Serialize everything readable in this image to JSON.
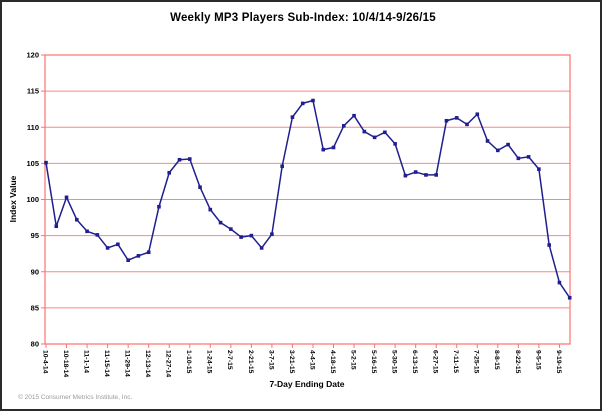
{
  "window": {
    "title": "Weekly MP3 Players Sub-Index: 10/4/14-9/26/15"
  },
  "footer": {
    "copyright": "© 2015 Consumer Metrics Institute, Inc."
  },
  "chart_data": {
    "type": "line",
    "title": "Weekly MP3 Players Sub-Index: 10/4/14-9/26/15",
    "xlabel": "7-Day Ending Date",
    "ylabel": "Index Value",
    "ylim": [
      80,
      120
    ],
    "ytick_step": 5,
    "y_tick_labels": [
      "80",
      "85",
      "90",
      "95",
      "100",
      "105",
      "110",
      "115",
      "120"
    ],
    "grid": true,
    "legend": "none",
    "n_points": 52,
    "x_label_every": 2,
    "x_tick_labels": [
      "10-4-14",
      "10-18-14",
      "11-1-14",
      "11-15-14",
      "11-29-14",
      "12-13-14",
      "12-27-14",
      "1-10-15",
      "1-24-15",
      "2-7-15",
      "2-21-15",
      "3-7-15",
      "3-21-15",
      "4-4-15",
      "4-18-15",
      "5-2-15",
      "5-16-15",
      "5-30-15",
      "6-13-15",
      "6-27-15",
      "7-11-15",
      "7-25-15",
      "8-8-15",
      "8-22-15",
      "9-5-15",
      "9-19-15"
    ],
    "values": [
      105.1,
      96.3,
      100.3,
      97.2,
      95.6,
      95.1,
      93.3,
      93.8,
      91.6,
      92.2,
      92.7,
      99.0,
      103.7,
      105.5,
      105.6,
      101.7,
      98.6,
      96.8,
      95.9,
      94.8,
      95.0,
      93.3,
      95.2,
      104.6,
      111.4,
      113.3,
      113.7,
      106.9,
      107.2,
      110.2,
      111.6,
      109.4,
      108.6,
      109.3,
      107.7,
      103.3,
      103.8,
      103.4,
      103.4,
      110.9,
      111.3,
      110.4,
      111.8,
      108.1,
      106.8,
      107.6,
      105.7,
      105.9,
      104.2,
      93.7,
      88.5,
      86.4
    ],
    "colors": {
      "series_line": "#1f1f8f",
      "marker": "#1f1f8f",
      "gridline": "#ff8585",
      "plot_frame": "#ff7070",
      "title_text": "#000000",
      "copyright_text": "#9a9a9a"
    }
  }
}
